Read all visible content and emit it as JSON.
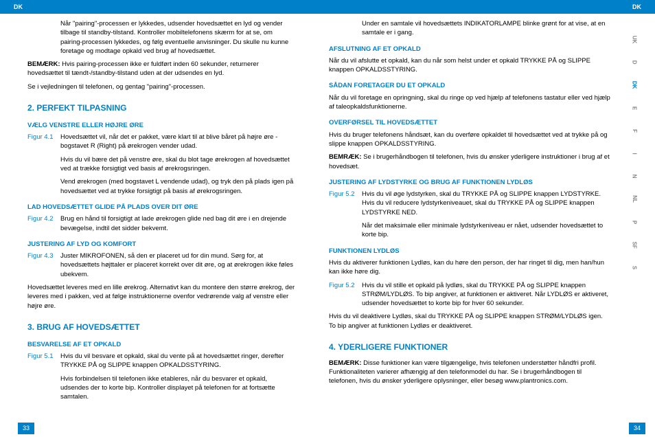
{
  "header": {
    "left": "DK",
    "right": "DK"
  },
  "langs": [
    "UK",
    "D",
    "DK",
    "E",
    "F",
    "I",
    "N",
    "NL",
    "P",
    "SF",
    "S"
  ],
  "activeLang": "DK",
  "left": {
    "p1": "Når \"pairing\"-processen er lykkedes, udsender hovedsættet en lyd og vender tilbage til standby-tilstand. Kontroller mobiltelefonens skærm for at se, om pairing-processen lykkedes, og følg eventuelle anvisninger. Du skulle nu kunne foretage og modtage opkald ved brug af hovedsættet.",
    "remark1_label": "BEMÆRK:",
    "remark1": "Hvis pairing-processen ikke er fuldført inden 60 sekunder, returnerer hovedsættet til tændt-/standby-tilstand uden at der udsendes en lyd.",
    "p2": "Se i vejledningen til telefonen, og gentag \"pairing\"-processen.",
    "h2_1": "2. PERFEKT TILPASNING",
    "h3_1": "VÆLG VENSTRE ELLER HØJRE ØRE",
    "fig41_label": "Figur 4.1",
    "fig41": "Hovedsættet vil, når det er pakket, være klart til at blive båret på højre øre - bogstavet R (Right) på ørekrogen vender udad.",
    "p3": "Hvis du vil bære det på venstre øre, skal du blot tage ørekrogen af hovedsættet ved at trække forsigtigt ved basis af ørekrogsringen.",
    "p4": "Vend ørekrogen (med bogstavet L vendende udad), og tryk den på plads igen på hovedsættet ved at trykke forsigtigt på basis af ørekrogsringen.",
    "h3_2": "LAD HOVEDSÆTTET GLIDE PÅ PLADS OVER DIT ØRE",
    "fig42_label": "Figur 4.2",
    "fig42": "Brug en hånd til forsigtigt at lade ørekrogen glide ned bag dit øre i en drejende bevægelse, indtil det sidder bekvemt.",
    "h3_3": "JUSTERING AF LYD OG KOMFORT",
    "fig43_label": "Figur 4.3",
    "fig43": "Juster MIKROFONEN, så den er placeret ud for din mund. Sørg for, at hovedsættets højttaler er placeret korrekt over dit øre, og at ørekrogen ikke føles ubekvem.",
    "p5": "Hovedsættet leveres med en lille ørekrog. Alternativt kan du montere den større ørekrog, der leveres med i pakken, ved at følge instruktionerne ovenfor vedrørende valg af venstre eller højre øre.",
    "h2_2": "3. BRUG AF HOVEDSÆTTET",
    "h3_4": "BESVARELSE AF ET OPKALD",
    "fig51_label": "Figur 5.1",
    "fig51": "Hvis du vil besvare et opkald, skal du vente på at hovedsættet ringer, derefter TRYKKE PÅ og SLIPPE knappen OPKALDSSTYRING.",
    "p6": "Hvis forbindelsen til telefonen ikke etableres, når du besvarer et opkald, udsendes der to korte bip. Kontroller displayet på telefonen for at fortsætte samtalen."
  },
  "right": {
    "p1": "Under en samtale vil hovedsættets INDIKATORLAMPE blinke grønt for at vise, at en samtale er i gang.",
    "h3_1": "AFSLUTNING AF ET OPKALD",
    "p2": "Når du vil afslutte et opkald, kan du når som helst under et opkald TRYKKE PÅ og SLIPPE knappen OPKALDSSTYRING.",
    "h3_2": "SÅDAN FORETAGER DU ET OPKALD",
    "p3": "Når du vil foretage en opringning, skal du ringe op ved hjælp af telefonens tastatur eller ved hjælp af taleopkaldsfunktionerne.",
    "h3_3": "OVERFØRSEL TIL HOVEDSÆTTET",
    "p4": "Hvis du bruger telefonens håndsæt, kan du overføre opkaldet til hovedsættet ved at trykke på og slippe knappen OPKALDSSTYRING.",
    "remark_label": "BEMRÆK:",
    "remark": "Se i brugerhåndbogen til telefonen, hvis du ønsker yderligere instruktioner i brug af et hovedsæt.",
    "h3_4": "JUSTERING AF LYDSTYRKE OG BRUG AF FUNKTIONEN LYDLØS",
    "fig52_label": "Figur 5.2",
    "fig52": "Hvis du vil øge lydstyrken, skal du TRYKKE PÅ og SLIPPE knappen LYDSTYRKE. Hvis du vil reducere lydstyrkeniveauet, skal du TRYKKE PÅ og SLIPPE knappen LYDSTYRKE NED.",
    "p5": "Når det maksimale eller minimale lydstyrkeniveau er nået, udsender hovedsættet to korte bip.",
    "h3_5": "FUNKTIONEN LYDLØS",
    "p6": "Hvis du aktiverer funktionen Lydløs, kan du høre den person, der har ringet til dig, men han/hun kan ikke høre dig.",
    "fig52b_label": "Figur 5.2",
    "fig52b": "Hvis du vil stille et opkald på lydløs, skal du TRYKKE PÅ og SLIPPE knappen STRØM/LYDLØS. To bip angiver, at funktionen er aktiveret. Når LYDLØS er aktiveret, udsender hovedsættet to korte bip for hver 60 sekunder.",
    "p7": "Hvis du vil deaktivere Lydløs, skal du TRYKKE PÅ og SLIPPE knappen STRØM/LYDLØS igen. To bip angiver at funktionen Lydløs er deaktiveret.",
    "h2_1": "4. YDERLIGERE FUNKTIONER",
    "remark2_label": "BEMÆRK:",
    "remark2": "Disse funktioner kan være tilgængelige, hvis telefonen understøtter håndfri profil. Funktionaliteten varierer afhængig af den telefonmodel du har. Se i brugerhåndbogen til telefonen, hvis du ønsker yderligere oplysninger, eller besøg www.plantronics.com."
  },
  "pageLeft": "33",
  "pageRight": "34"
}
